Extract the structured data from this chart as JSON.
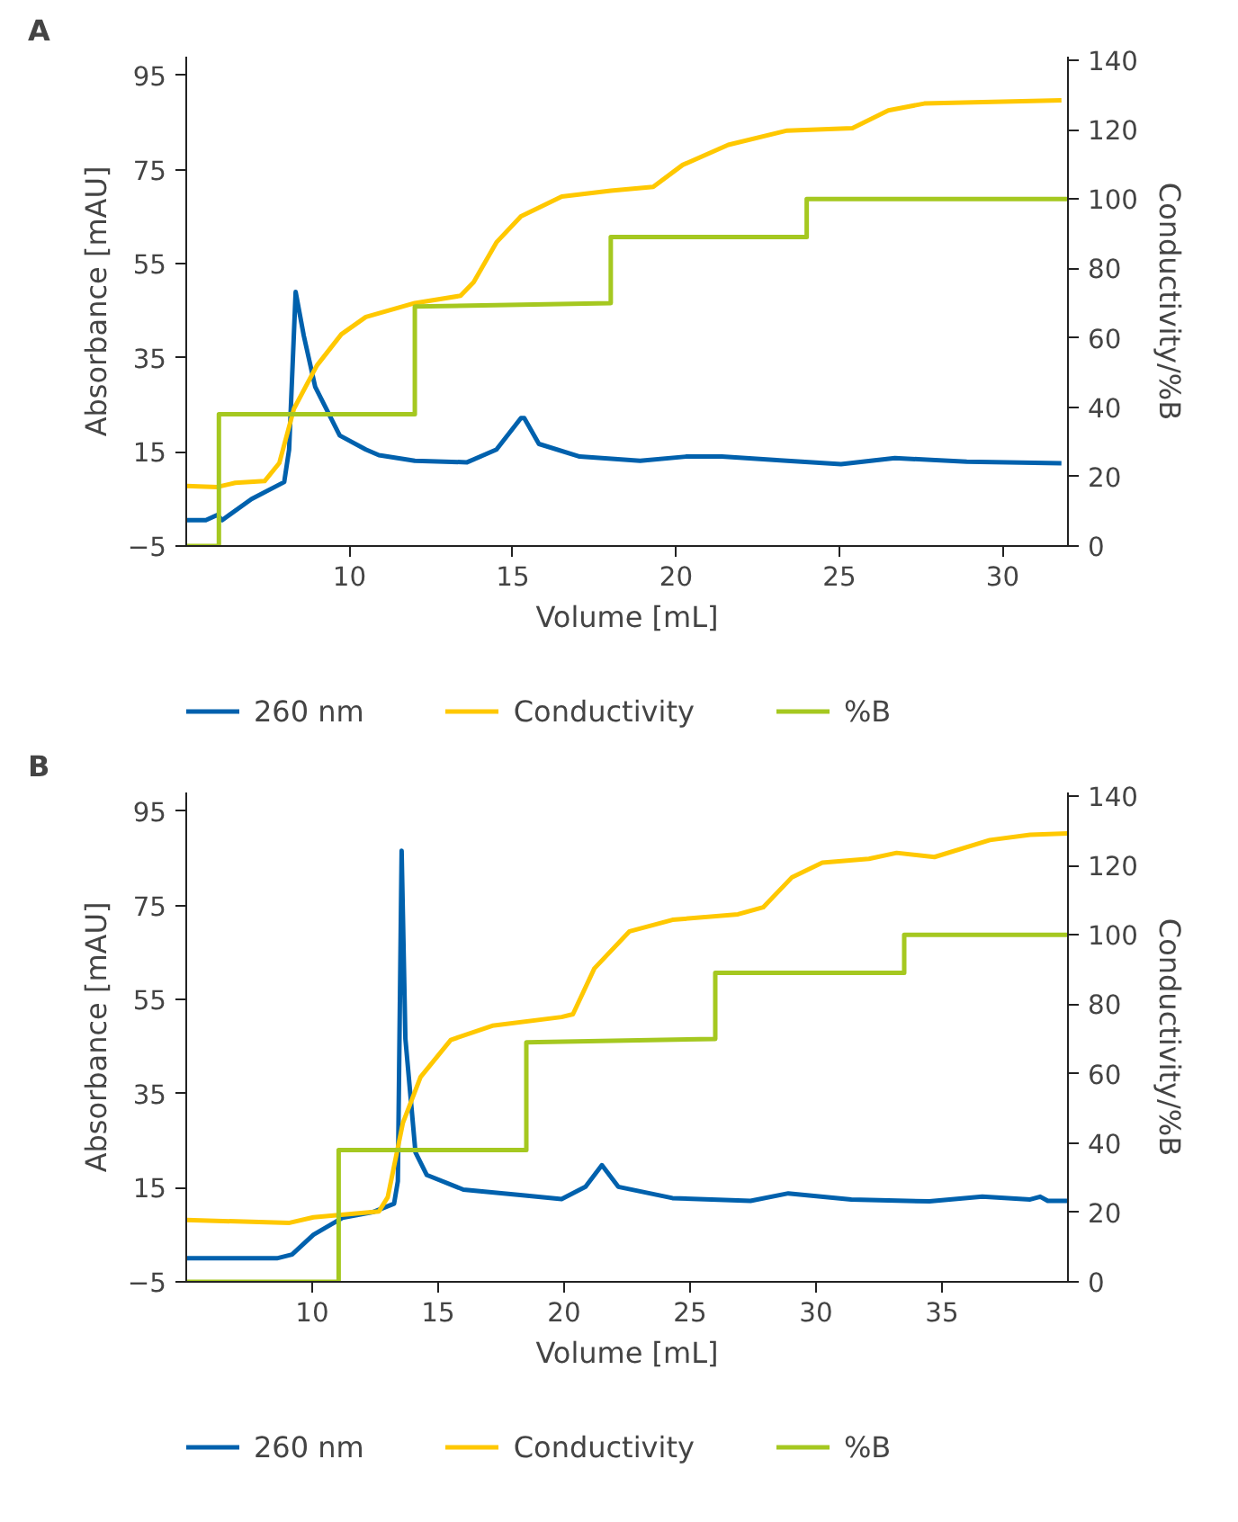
{
  "chart_data": [
    {
      "type": "line",
      "title": "A",
      "xlabel": "Volume [mL]",
      "ylabel": "Absorbance [mAU]",
      "y2label": "Conductivity/%B",
      "xlim": [
        5,
        32
      ],
      "xticks": [
        10,
        15,
        20,
        25,
        30
      ],
      "ylim": [
        -5,
        99
      ],
      "yticks": [
        -5,
        15,
        35,
        55,
        75,
        95
      ],
      "y2lim": [
        0,
        141
      ],
      "y2ticks": [
        0,
        20,
        40,
        60,
        80,
        100,
        120,
        140
      ],
      "grid": false,
      "legend": "bottom",
      "series": [
        {
          "name": "260 nm",
          "color": "#0061ad",
          "axis": "y",
          "x": [
            5,
            5.6,
            5.95,
            6.1,
            7.0,
            8.0,
            8.15,
            8.35,
            8.6,
            8.95,
            9.7,
            10.5,
            10.9,
            12.0,
            13.6,
            14.5,
            15.25,
            15.35,
            15.8,
            17.05,
            18.9,
            20.3,
            21.4,
            23.4,
            25.05,
            26.7,
            28.9,
            31.8
          ],
          "values": [
            0.5,
            0.5,
            1.6,
            0.5,
            5,
            8.6,
            15.5,
            49,
            39.7,
            28.8,
            18.5,
            15.5,
            14.3,
            13.1,
            12.8,
            15.5,
            22.2,
            22.2,
            16.7,
            14.0,
            13.1,
            14.0,
            14.0,
            13.1,
            12.4,
            13.7,
            12.9,
            12.6
          ]
        },
        {
          "name": "Conductivity",
          "color": "#ffc800",
          "axis": "y2",
          "x": [
            5,
            5.95,
            6.5,
            7.4,
            7.85,
            8.3,
            9.0,
            9.75,
            10.5,
            12.0,
            13.4,
            13.8,
            14.5,
            15.25,
            16.5,
            18.0,
            19.3,
            20.2,
            21.6,
            23.4,
            25.4,
            26.5,
            27.6,
            31.8
          ],
          "values": [
            17.3,
            17.0,
            18.2,
            18.7,
            23.9,
            39.6,
            52,
            61,
            66,
            70,
            72.1,
            76,
            87.5,
            95,
            100.7,
            102.4,
            103.5,
            109.8,
            115.6,
            119.7,
            120.4,
            125.5,
            127.5,
            128.4
          ]
        },
        {
          "name": "%B",
          "color": "#a5c820",
          "axis": "y2",
          "x": [
            5,
            6,
            6,
            12,
            12,
            18,
            18,
            24,
            24,
            32
          ],
          "values": [
            0,
            0,
            38,
            38,
            69,
            70,
            89,
            89,
            100,
            100
          ]
        }
      ]
    },
    {
      "type": "line",
      "title": "B",
      "xlabel": "Volume [mL]",
      "ylabel": "Absorbance [mAU]",
      "y2label": "Conductivity/%B",
      "xlim": [
        5,
        40
      ],
      "xticks": [
        10,
        15,
        20,
        25,
        30,
        35
      ],
      "ylim": [
        -5,
        99
      ],
      "yticks": [
        -5,
        15,
        35,
        55,
        75,
        95
      ],
      "y2lim": [
        0,
        141
      ],
      "y2ticks": [
        0,
        20,
        40,
        60,
        80,
        100,
        120,
        140
      ],
      "grid": false,
      "legend": "bottom",
      "series": [
        {
          "name": "260 nm",
          "color": "#0061ad",
          "axis": "y",
          "x": [
            5,
            8.6,
            9.2,
            10.05,
            11.2,
            12.4,
            13.25,
            13.4,
            13.55,
            13.7,
            14.1,
            14.55,
            16.0,
            18.35,
            19.9,
            20.85,
            21.5,
            22.15,
            24.3,
            27.4,
            28.9,
            31.4,
            34.5,
            36.6,
            38.5,
            38.9,
            39.2,
            40
          ],
          "values": [
            0,
            0,
            0.8,
            5,
            8.6,
            9.8,
            11.6,
            16.4,
            86.6,
            46.6,
            22.5,
            17.7,
            14.6,
            13.4,
            12.6,
            15.2,
            19.8,
            15.2,
            12.8,
            12.2,
            13.8,
            12.5,
            12.1,
            13.1,
            12.5,
            13.1,
            12.2,
            12.2
          ]
        },
        {
          "name": "Conductivity",
          "color": "#ffc800",
          "axis": "y2",
          "x": [
            5,
            9.1,
            10.05,
            12.65,
            13.0,
            13.6,
            14.3,
            15.5,
            17.15,
            19.9,
            20.35,
            21.2,
            22.6,
            24.3,
            26.9,
            27.9,
            29.05,
            30.25,
            32.1,
            33.2,
            34.7,
            36.9,
            38.5,
            40
          ],
          "values": [
            17.8,
            17.0,
            18.6,
            20.3,
            24.4,
            45.8,
            59,
            69.7,
            73.8,
            76.3,
            77.1,
            90.3,
            101,
            104.3,
            105.9,
            107.9,
            116.6,
            120.8,
            121.9,
            123.6,
            122.4,
            127.3,
            128.8,
            129.2
          ]
        },
        {
          "name": "%B",
          "color": "#a5c820",
          "axis": "y2",
          "x": [
            5,
            11.05,
            11.05,
            18.5,
            18.5,
            26,
            26,
            33.5,
            33.5,
            40
          ],
          "values": [
            0,
            0,
            38,
            38,
            69,
            70,
            89,
            89,
            100,
            100
          ]
        }
      ]
    }
  ]
}
